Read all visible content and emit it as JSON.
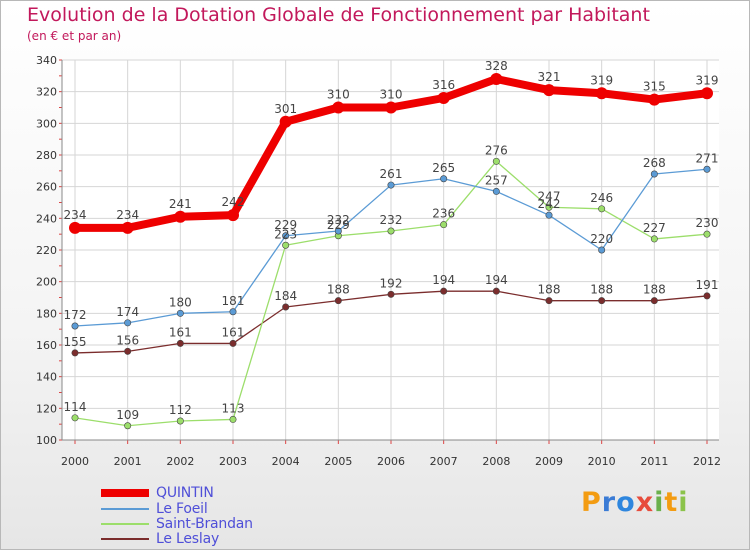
{
  "title": "Evolution de la Dotation Globale de Fonctionnement par Habitant",
  "subtitle": "(en € et par an)",
  "brand": {
    "letters": [
      "P",
      "r",
      "o",
      "x",
      "i",
      "t",
      "i"
    ],
    "colors": [
      "#f39c12",
      "#3a7bd5",
      "#2e86de",
      "#e74c3c",
      "#6ab04c",
      "#f39c12",
      "#8bc34a"
    ]
  },
  "chart_data": {
    "type": "line",
    "title": "Evolution de la Dotation Globale de Fonctionnement par Habitant",
    "subtitle": "(en € et par an)",
    "xlabel": "",
    "ylabel": "",
    "x": [
      "2000",
      "2001",
      "2002",
      "2003",
      "2004",
      "2005",
      "2006",
      "2007",
      "2008",
      "2009",
      "2010",
      "2011",
      "2012"
    ],
    "ylim": [
      100,
      340
    ],
    "yticks": [
      100,
      120,
      140,
      160,
      180,
      200,
      220,
      240,
      260,
      280,
      300,
      320,
      340
    ],
    "grid": true,
    "legend_position": "bottom-left",
    "series": [
      {
        "name": "QUINTIN",
        "color": "#ee0000",
        "values": [
          234,
          234,
          241,
          242,
          301,
          310,
          310,
          316,
          328,
          321,
          319,
          315,
          319
        ]
      },
      {
        "name": "Le Foeil",
        "color": "#5b9bd5",
        "values": [
          172,
          174,
          180,
          181,
          229,
          232,
          261,
          265,
          257,
          242,
          220,
          268,
          271
        ]
      },
      {
        "name": "Saint-Brandan",
        "color": "#9cde6b",
        "values": [
          114,
          109,
          112,
          113,
          223,
          229,
          232,
          236,
          276,
          247,
          246,
          227,
          230
        ]
      },
      {
        "name": "Le Leslay",
        "color": "#7b2d2d",
        "values": [
          155,
          156,
          161,
          161,
          184,
          188,
          192,
          194,
          194,
          188,
          188,
          188,
          191
        ]
      }
    ]
  }
}
